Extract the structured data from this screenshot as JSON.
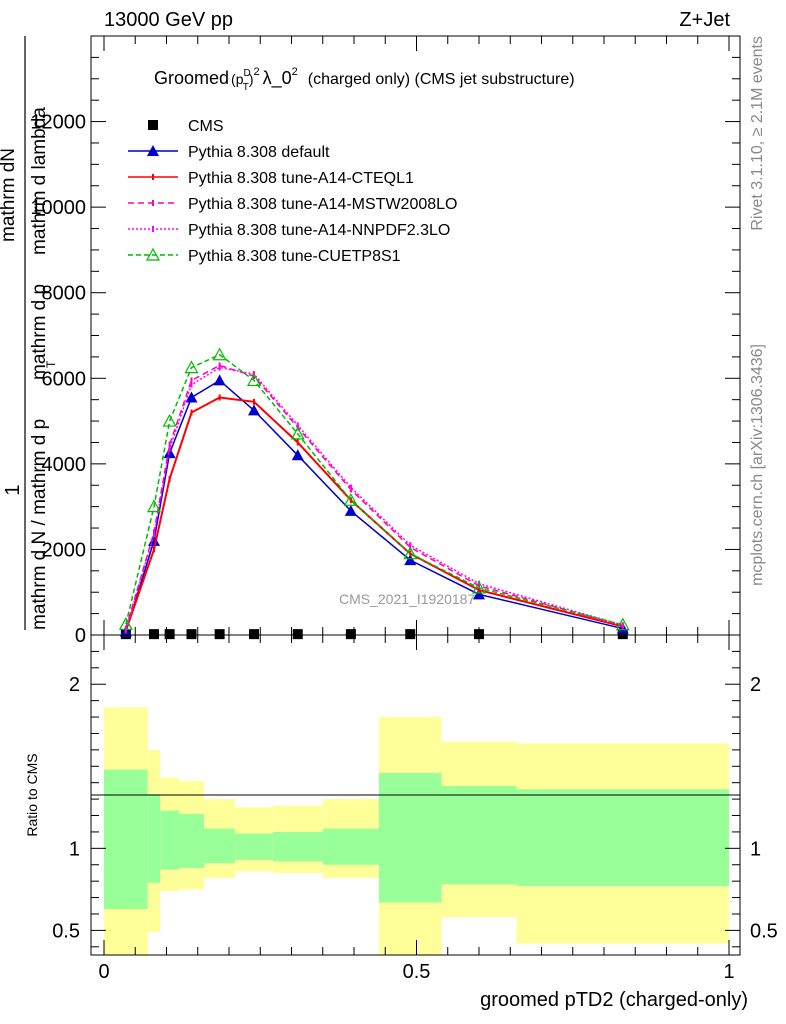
{
  "header": {
    "left": "13000 GeV pp",
    "right": "Z+Jet"
  },
  "side_labels": {
    "rivet": "Rivet 3.1.10, ≥ 2.1M events",
    "mcplots": "mcplots.cern.ch [arXiv:1306.3436]"
  },
  "watermark": "CMS_2021_I1920187",
  "chart_data": [
    {
      "type": "line",
      "title_parts": {
        "prefix": "Groomed",
        "p": "(p",
        "sub": "T",
        "sup": "D",
        "close": ")",
        "pow": "2",
        "mid": "λ_0",
        "pow2": "2",
        "suffix": "(charged only) (CMS jet substructure)"
      },
      "ylabel_parts": {
        "one": "1",
        "numer": "mathrm dN",
        "denom_a": "mathrm d N / mathrmd p mathrm d p",
        "denom_sub": "T",
        "denom_b": "mathrm d lambda"
      },
      "ylabel_lines": {
        "num": "mathrm d N",
        "num2": "mathrm d p mathrm d p",
        "den": "mathrm d N / mathrm d p mathrm d p",
        "l1": "mathrm dN",
        "l2": "mathrm d p",
        "l3": "mathrm d lambda"
      },
      "ylabel_text": {
        "top": "mathrm dN",
        "top2": "mathrm d p",
        "top3": "mathrm d lambda",
        "one": "1",
        "bottom": "mathrm d N / mathrm d p",
        "bottom_sub": "T"
      },
      "xlim": [
        0,
        1
      ],
      "ylim": [
        0,
        14000
      ],
      "yticks": [
        0,
        2000,
        4000,
        6000,
        8000,
        10000,
        12000
      ],
      "ytick_labels": [
        "0",
        "2000",
        "4000",
        "6000",
        "8000",
        "10000",
        "12000"
      ],
      "legend_position": "top-left",
      "series": [
        {
          "name": "CMS",
          "color": "#000000",
          "marker": "square",
          "x": [
            0.035,
            0.08,
            0.105,
            0.14,
            0.185,
            0.24,
            0.31,
            0.395,
            0.49,
            0.6,
            0.83
          ],
          "y": [
            20,
            20,
            20,
            20,
            20,
            20,
            20,
            20,
            20,
            20,
            20
          ]
        },
        {
          "name": "Pythia 8.308 default",
          "color": "#0000cc",
          "marker": "triangle",
          "x": [
            0.035,
            0.08,
            0.105,
            0.14,
            0.185,
            0.24,
            0.31,
            0.395,
            0.49,
            0.6,
            0.83
          ],
          "y": [
            80,
            2200,
            4250,
            5550,
            5950,
            5250,
            4200,
            2900,
            1750,
            950,
            150
          ]
        },
        {
          "name": "Pythia 8.308 tune-A14-CTEQL1",
          "color": "#ff0000",
          "marker": "tick",
          "x": [
            0.035,
            0.08,
            0.105,
            0.14,
            0.185,
            0.24,
            0.31,
            0.395,
            0.49,
            0.6,
            0.83
          ],
          "y": [
            100,
            2000,
            3650,
            5200,
            5550,
            5450,
            4500,
            3150,
            1900,
            1050,
            200
          ]
        },
        {
          "name": "Pythia 8.308 tune-A14-MSTW2008LO",
          "color": "#ff00aa",
          "marker": "tick",
          "x": [
            0.035,
            0.08,
            0.105,
            0.14,
            0.185,
            0.24,
            0.31,
            0.395,
            0.49,
            0.6,
            0.83
          ],
          "y": [
            150,
            2400,
            4450,
            5950,
            6300,
            6050,
            4850,
            3400,
            2050,
            1150,
            220
          ]
        },
        {
          "name": "Pythia 8.308 tune-A14-NNPDF2.3LO",
          "color": "#ff00ff",
          "marker": "tick",
          "x": [
            0.035,
            0.08,
            0.105,
            0.14,
            0.185,
            0.24,
            0.31,
            0.395,
            0.49,
            0.6,
            0.83
          ],
          "y": [
            130,
            2350,
            4350,
            5850,
            6250,
            6100,
            4900,
            3450,
            2100,
            1200,
            230
          ]
        },
        {
          "name": "Pythia 8.308 tune-CUETP8S1",
          "color": "#00bb00",
          "marker": "open-triangle",
          "x": [
            0.035,
            0.08,
            0.105,
            0.14,
            0.185,
            0.24,
            0.31,
            0.395,
            0.49,
            0.6,
            0.83
          ],
          "y": [
            250,
            3000,
            5000,
            6250,
            6550,
            5950,
            4700,
            3150,
            1900,
            1100,
            240
          ]
        }
      ]
    },
    {
      "type": "area",
      "ylabel": "Ratio to CMS",
      "xlabel": "groomed pTD2 (charged-only)",
      "xlim": [
        0,
        1
      ],
      "ylim": [
        0.35,
        2.3
      ],
      "yticks": [
        0.5,
        1,
        2
      ],
      "ytick_labels": [
        "0.5",
        "1",
        "2"
      ],
      "xticks": [
        0,
        0.5,
        1
      ],
      "xtick_labels": [
        "0",
        "0.5",
        "1"
      ],
      "bins": [
        {
          "x0": 0.0,
          "x1": 0.07,
          "inner": [
            0.63,
            1.48
          ],
          "outer": [
            0.35,
            1.86
          ]
        },
        {
          "x0": 0.07,
          "x1": 0.09,
          "inner": [
            0.79,
            1.33
          ],
          "outer": [
            0.49,
            1.6
          ]
        },
        {
          "x0": 0.09,
          "x1": 0.12,
          "inner": [
            0.87,
            1.23
          ],
          "outer": [
            0.74,
            1.43
          ]
        },
        {
          "x0": 0.12,
          "x1": 0.16,
          "inner": [
            0.88,
            1.21
          ],
          "outer": [
            0.75,
            1.41
          ]
        },
        {
          "x0": 0.16,
          "x1": 0.21,
          "inner": [
            0.91,
            1.12
          ],
          "outer": [
            0.82,
            1.3
          ]
        },
        {
          "x0": 0.21,
          "x1": 0.27,
          "inner": [
            0.93,
            1.09
          ],
          "outer": [
            0.86,
            1.25
          ]
        },
        {
          "x0": 0.27,
          "x1": 0.35,
          "inner": [
            0.92,
            1.1
          ],
          "outer": [
            0.85,
            1.26
          ]
        },
        {
          "x0": 0.35,
          "x1": 0.44,
          "inner": [
            0.9,
            1.12
          ],
          "outer": [
            0.82,
            1.3
          ]
        },
        {
          "x0": 0.44,
          "x1": 0.54,
          "inner": [
            0.67,
            1.46
          ],
          "outer": [
            0.35,
            1.8
          ]
        },
        {
          "x0": 0.54,
          "x1": 0.66,
          "inner": [
            0.78,
            1.38
          ],
          "outer": [
            0.58,
            1.65
          ]
        },
        {
          "x0": 0.66,
          "x1": 1.0,
          "inner": [
            0.77,
            1.36
          ],
          "outer": [
            0.42,
            1.64
          ]
        }
      ],
      "inner_color": "#99ff99",
      "outer_color": "#ffff99"
    }
  ]
}
